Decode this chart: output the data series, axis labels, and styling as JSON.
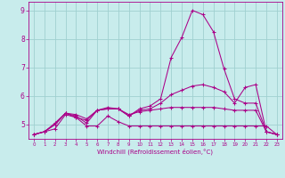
{
  "xlabel": "Windchill (Refroidissement éolien,°C)",
  "background_color": "#c8ecec",
  "grid_color": "#a0d0d0",
  "line_color": "#aa0088",
  "x_values": [
    0,
    1,
    2,
    3,
    4,
    5,
    6,
    7,
    8,
    9,
    10,
    11,
    12,
    13,
    14,
    15,
    16,
    17,
    18,
    19,
    20,
    21,
    22,
    23
  ],
  "series": [
    [
      4.65,
      4.75,
      4.85,
      5.35,
      5.25,
      4.95,
      4.95,
      5.3,
      5.1,
      4.95,
      4.95,
      4.95,
      4.95,
      4.95,
      4.95,
      4.95,
      4.95,
      4.95,
      4.95,
      4.95,
      4.95,
      4.95,
      4.95,
      4.65
    ],
    [
      4.65,
      4.75,
      5.0,
      5.4,
      5.25,
      5.15,
      5.5,
      5.55,
      5.55,
      5.35,
      5.45,
      5.5,
      5.55,
      5.6,
      5.6,
      5.6,
      5.6,
      5.6,
      5.55,
      5.5,
      5.5,
      5.5,
      4.75,
      4.65
    ],
    [
      4.65,
      4.75,
      5.0,
      5.4,
      5.3,
      5.05,
      5.5,
      5.55,
      5.55,
      5.3,
      5.5,
      5.55,
      5.75,
      6.05,
      6.2,
      6.35,
      6.4,
      6.3,
      6.15,
      5.75,
      6.3,
      6.4,
      4.75,
      4.65
    ],
    [
      4.65,
      4.75,
      5.05,
      5.4,
      5.35,
      5.2,
      5.5,
      5.6,
      5.55,
      5.3,
      5.55,
      5.65,
      5.9,
      7.35,
      8.05,
      9.0,
      8.85,
      8.25,
      6.95,
      5.9,
      5.75,
      5.75,
      4.75,
      4.65
    ]
  ],
  "ylim": [
    4.5,
    9.3
  ],
  "xlim": [
    -0.5,
    23.5
  ],
  "yticks": [
    5,
    6,
    7,
    8,
    9
  ],
  "xticks": [
    0,
    1,
    2,
    3,
    4,
    5,
    6,
    7,
    8,
    9,
    10,
    11,
    12,
    13,
    14,
    15,
    16,
    17,
    18,
    19,
    20,
    21,
    22,
    23
  ]
}
